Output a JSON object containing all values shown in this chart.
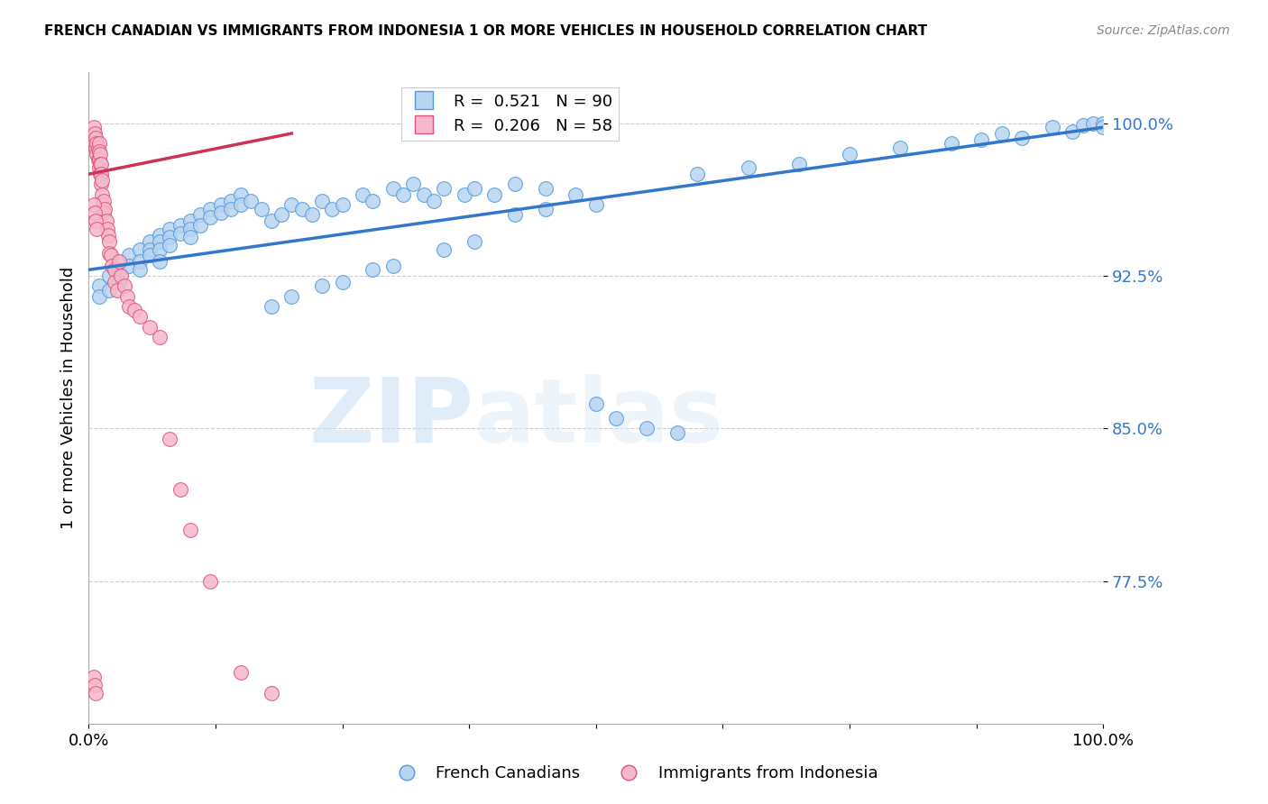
{
  "title": "FRENCH CANADIAN VS IMMIGRANTS FROM INDONESIA 1 OR MORE VEHICLES IN HOUSEHOLD CORRELATION CHART",
  "source": "Source: ZipAtlas.com",
  "ylabel": "1 or more Vehicles in Household",
  "xlim": [
    0.0,
    1.0
  ],
  "ylim": [
    0.705,
    1.025
  ],
  "yticks": [
    0.775,
    0.85,
    0.925,
    1.0
  ],
  "ytick_labels": [
    "77.5%",
    "85.0%",
    "92.5%",
    "100.0%"
  ],
  "xtick_labels": [
    "0.0%",
    "100.0%"
  ],
  "blue_R": 0.521,
  "blue_N": 90,
  "pink_R": 0.206,
  "pink_N": 58,
  "blue_color": "#b8d4f0",
  "pink_color": "#f5b8cc",
  "blue_edge_color": "#5599dd",
  "pink_edge_color": "#dd5577",
  "blue_line_color": "#3377cc",
  "pink_line_color": "#cc3355",
  "legend_blue_label": "French Canadians",
  "legend_pink_label": "Immigrants from Indonesia",
  "watermark1": "ZIP",
  "watermark2": "atlas",
  "blue_x": [
    0.01,
    0.01,
    0.02,
    0.02,
    0.03,
    0.03,
    0.04,
    0.04,
    0.05,
    0.05,
    0.05,
    0.06,
    0.06,
    0.06,
    0.07,
    0.07,
    0.07,
    0.07,
    0.08,
    0.08,
    0.08,
    0.09,
    0.09,
    0.1,
    0.1,
    0.1,
    0.11,
    0.11,
    0.12,
    0.12,
    0.13,
    0.13,
    0.14,
    0.14,
    0.15,
    0.15,
    0.16,
    0.17,
    0.18,
    0.19,
    0.2,
    0.21,
    0.22,
    0.23,
    0.24,
    0.25,
    0.27,
    0.28,
    0.3,
    0.31,
    0.32,
    0.33,
    0.34,
    0.35,
    0.37,
    0.38,
    0.4,
    0.42,
    0.45,
    0.48,
    0.5,
    0.52,
    0.55,
    0.58,
    0.6,
    0.65,
    0.7,
    0.75,
    0.8,
    0.85,
    0.88,
    0.9,
    0.92,
    0.95,
    0.97,
    0.98,
    0.99,
    1.0,
    1.0,
    0.42,
    0.45,
    0.5,
    0.38,
    0.35,
    0.3,
    0.28,
    0.25,
    0.23,
    0.2,
    0.18
  ],
  "blue_y": [
    0.92,
    0.915,
    0.925,
    0.918,
    0.928,
    0.922,
    0.935,
    0.93,
    0.938,
    0.932,
    0.928,
    0.942,
    0.938,
    0.935,
    0.945,
    0.942,
    0.938,
    0.932,
    0.948,
    0.944,
    0.94,
    0.95,
    0.946,
    0.952,
    0.948,
    0.944,
    0.955,
    0.95,
    0.958,
    0.954,
    0.96,
    0.956,
    0.962,
    0.958,
    0.965,
    0.96,
    0.962,
    0.958,
    0.952,
    0.955,
    0.96,
    0.958,
    0.955,
    0.962,
    0.958,
    0.96,
    0.965,
    0.962,
    0.968,
    0.965,
    0.97,
    0.965,
    0.962,
    0.968,
    0.965,
    0.968,
    0.965,
    0.97,
    0.968,
    0.965,
    0.862,
    0.855,
    0.85,
    0.848,
    0.975,
    0.978,
    0.98,
    0.985,
    0.988,
    0.99,
    0.992,
    0.995,
    0.993,
    0.998,
    0.996,
    0.999,
    1.0,
    1.0,
    0.998,
    0.955,
    0.958,
    0.96,
    0.942,
    0.938,
    0.93,
    0.928,
    0.922,
    0.92,
    0.915,
    0.91
  ],
  "pink_x": [
    0.005,
    0.005,
    0.006,
    0.006,
    0.007,
    0.007,
    0.008,
    0.008,
    0.009,
    0.009,
    0.01,
    0.01,
    0.01,
    0.01,
    0.011,
    0.011,
    0.011,
    0.012,
    0.012,
    0.012,
    0.013,
    0.013,
    0.014,
    0.015,
    0.015,
    0.016,
    0.017,
    0.018,
    0.019,
    0.02,
    0.02,
    0.022,
    0.023,
    0.025,
    0.025,
    0.028,
    0.03,
    0.032,
    0.035,
    0.038,
    0.04,
    0.045,
    0.05,
    0.06,
    0.07,
    0.08,
    0.09,
    0.1,
    0.12,
    0.15,
    0.18,
    0.005,
    0.006,
    0.007,
    0.008,
    0.005,
    0.006,
    0.007
  ],
  "pink_y": [
    0.998,
    0.992,
    0.995,
    0.99,
    0.993,
    0.988,
    0.99,
    0.985,
    0.988,
    0.982,
    0.99,
    0.986,
    0.982,
    0.978,
    0.985,
    0.98,
    0.975,
    0.98,
    0.975,
    0.97,
    0.972,
    0.965,
    0.96,
    0.962,
    0.956,
    0.958,
    0.952,
    0.948,
    0.945,
    0.942,
    0.936,
    0.935,
    0.93,
    0.928,
    0.922,
    0.918,
    0.932,
    0.925,
    0.92,
    0.915,
    0.91,
    0.908,
    0.905,
    0.9,
    0.895,
    0.845,
    0.82,
    0.8,
    0.775,
    0.73,
    0.72,
    0.96,
    0.956,
    0.952,
    0.948,
    0.728,
    0.724,
    0.72
  ],
  "blue_trendline_x0": 0.0,
  "blue_trendline_x1": 1.0,
  "blue_trendline_y0": 0.928,
  "blue_trendline_y1": 0.998,
  "pink_trendline_x0": 0.0,
  "pink_trendline_x1": 0.2,
  "pink_trendline_y0": 0.975,
  "pink_trendline_y1": 0.995
}
